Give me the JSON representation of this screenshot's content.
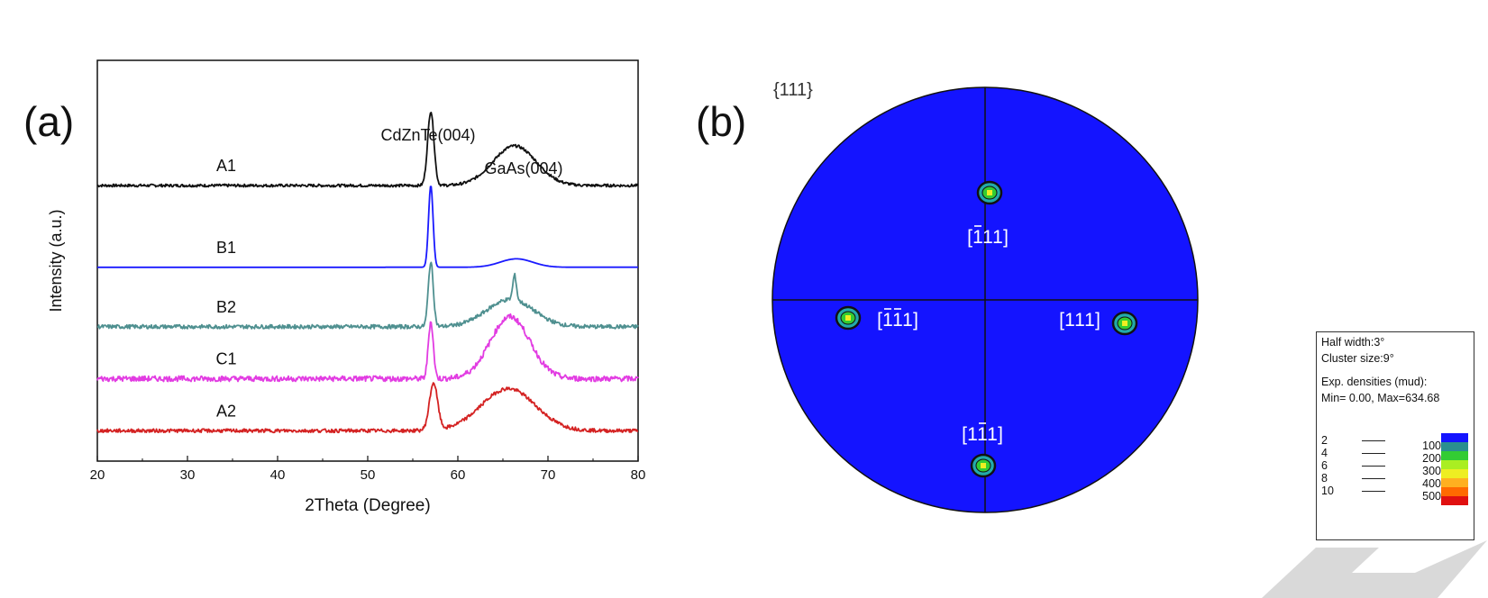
{
  "panels": {
    "a_label": "(a)",
    "b_label": "(b)"
  },
  "chart_data": [
    {
      "type": "line",
      "panel": "(a)",
      "xlabel": "2Theta (Degree)",
      "ylabel": "Intensity (a.u.)",
      "xlim": [
        20,
        80
      ],
      "xticks": [
        20,
        30,
        40,
        50,
        60,
        70,
        80
      ],
      "grid": false,
      "annotations": [
        {
          "text": "CdZnTe(004)",
          "x": 57.0
        },
        {
          "text": "GaAs(004)",
          "x": 66.5
        }
      ],
      "series": [
        {
          "name": "A1",
          "color": "#111111",
          "baseline": 5.2,
          "peaks": [
            {
              "center": 57.0,
              "height": 1.5,
              "width": 0.35
            },
            {
              "center": 66.3,
              "height": 0.8,
              "width": 2.4
            }
          ],
          "noise": 0.035
        },
        {
          "name": "B1",
          "color": "#1a1aff",
          "baseline": 3.55,
          "peaks": [
            {
              "center": 57.0,
              "height": 1.65,
              "width": 0.25
            },
            {
              "center": 66.5,
              "height": 0.17,
              "width": 1.8
            }
          ],
          "noise": 0.0
        },
        {
          "name": "B2",
          "color": "#4f9090",
          "baseline": 2.35,
          "peaks": [
            {
              "center": 57.0,
              "height": 1.3,
              "width": 0.28
            },
            {
              "center": 65.8,
              "height": 0.55,
              "width": 2.6
            },
            {
              "center": 66.3,
              "height": 0.5,
              "width": 0.2
            }
          ],
          "noise": 0.05
        },
        {
          "name": "C1",
          "color": "#e23ce2",
          "baseline": 1.3,
          "peaks": [
            {
              "center": 57.0,
              "height": 1.15,
              "width": 0.28
            },
            {
              "center": 65.8,
              "height": 1.25,
              "width": 2.2
            }
          ],
          "noise": 0.07
        },
        {
          "name": "A2",
          "color": "#d42222",
          "baseline": 0.25,
          "peaks": [
            {
              "center": 57.3,
              "height": 0.95,
              "width": 0.45
            },
            {
              "center": 65.6,
              "height": 0.85,
              "width": 3.0
            }
          ],
          "noise": 0.045
        }
      ]
    },
    {
      "type": "other",
      "panel": "(b)",
      "title": "{111}",
      "description_free": true,
      "background_color": "#1414ff",
      "poles": [
        {
          "label": "[ē1̄ 1 1]"
        },
        {
          "label": "[111]"
        },
        {
          "label": "[1 1̄ 1]"
        },
        {
          "label": "[1̄ 1̄ 1]"
        }
      ]
    }
  ],
  "pole_figure": {
    "title": "{111}",
    "poles": [
      {
        "id": "top",
        "h": "1",
        "h_bar": true,
        "k": "1",
        "k_bar": false,
        "l": "1"
      },
      {
        "id": "right",
        "h": "1",
        "h_bar": false,
        "k": "1",
        "k_bar": false,
        "l": "1"
      },
      {
        "id": "bottom",
        "h": "1",
        "h_bar": false,
        "k": "1",
        "k_bar": true,
        "l": "1"
      },
      {
        "id": "left",
        "h": "1",
        "h_bar": true,
        "k": "1",
        "k_bar": true,
        "l": "1"
      }
    ],
    "legend": {
      "half_width": "Half width:3°",
      "cluster_size": "Cluster size:9°",
      "exp_densities": "Exp. densities (mud):",
      "min_max": "Min= 0.00, Max=634.68",
      "contour_levels": [
        "2",
        "4",
        "6",
        "8",
        "10"
      ],
      "colorbar_labels": [
        "100",
        "200",
        "300",
        "400",
        "500"
      ],
      "colorbar_colors": [
        "#1414ff",
        "#2a8f8f",
        "#33cc33",
        "#aaee22",
        "#eeee22",
        "#ffb020",
        "#ff6a00",
        "#e01010"
      ]
    }
  }
}
